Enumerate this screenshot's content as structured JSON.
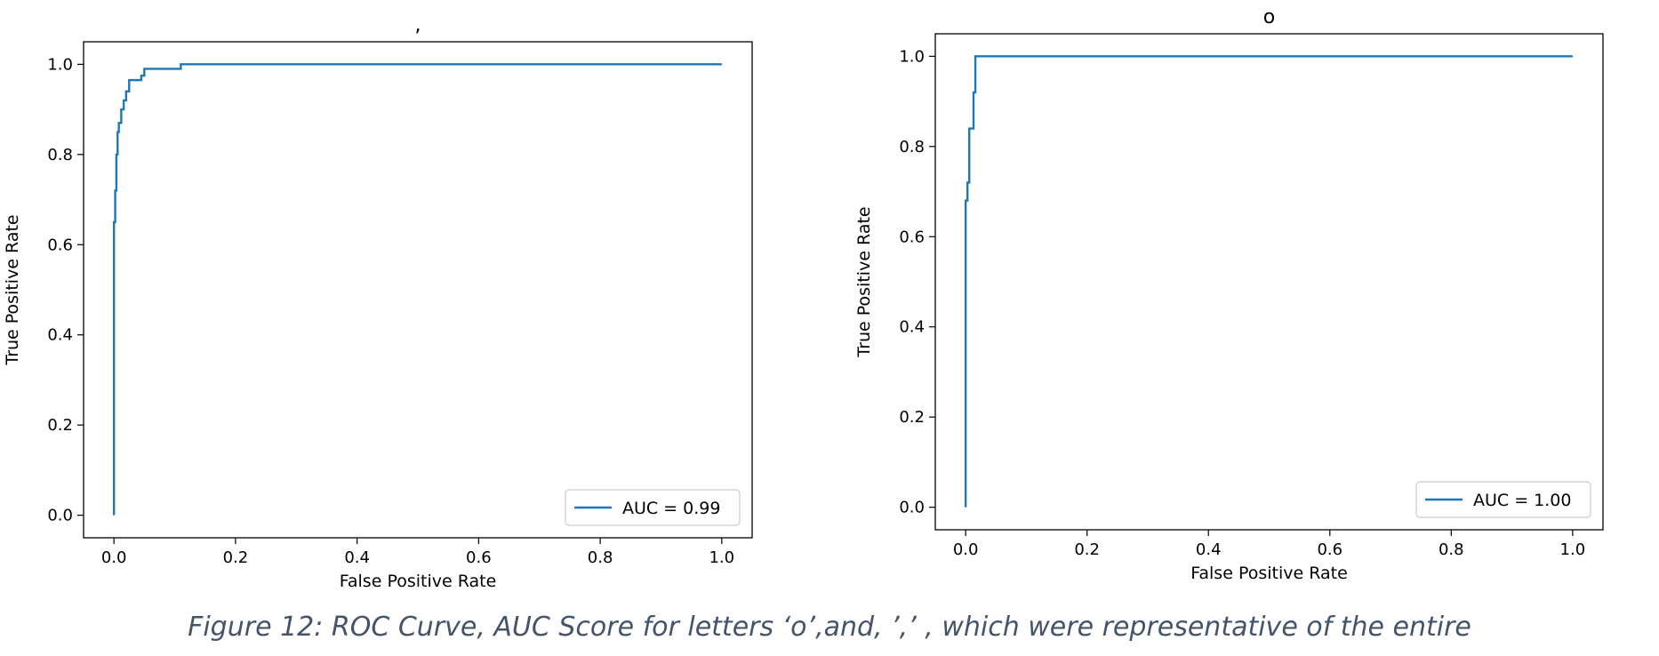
{
  "chart_data": [
    {
      "type": "line",
      "title": ",",
      "xlabel": "False Positive Rate",
      "ylabel": "True Positive Rate",
      "xlim": [
        -0.05,
        1.05
      ],
      "ylim": [
        -0.05,
        1.05
      ],
      "xticks": [
        "0.0",
        "0.2",
        "0.4",
        "0.6",
        "0.8",
        "1.0"
      ],
      "yticks": [
        "0.0",
        "0.2",
        "0.4",
        "0.6",
        "0.8",
        "1.0"
      ],
      "legend": "lower-right",
      "color": "#1f77b4",
      "series": [
        {
          "name": "AUC = 0.99",
          "x": [
            0.0,
            0.0,
            0.002,
            0.002,
            0.004,
            0.004,
            0.006,
            0.006,
            0.008,
            0.008,
            0.012,
            0.012,
            0.016,
            0.016,
            0.02,
            0.02,
            0.025,
            0.025,
            0.03,
            0.03,
            0.045,
            0.045,
            0.05,
            0.05,
            0.055,
            0.055,
            0.11,
            0.11,
            1.0
          ],
          "y": [
            0.0,
            0.65,
            0.65,
            0.72,
            0.72,
            0.8,
            0.8,
            0.85,
            0.85,
            0.87,
            0.87,
            0.9,
            0.9,
            0.92,
            0.92,
            0.94,
            0.94,
            0.965,
            0.965,
            0.965,
            0.965,
            0.975,
            0.975,
            0.99,
            0.99,
            0.99,
            0.99,
            1.0,
            1.0
          ]
        }
      ]
    },
    {
      "type": "line",
      "title": "o",
      "xlabel": "False Positive Rate",
      "ylabel": "True Positive Rate",
      "xlim": [
        -0.05,
        1.05
      ],
      "ylim": [
        -0.05,
        1.05
      ],
      "xticks": [
        "0.0",
        "0.2",
        "0.4",
        "0.6",
        "0.8",
        "1.0"
      ],
      "yticks": [
        "0.0",
        "0.2",
        "0.4",
        "0.6",
        "0.8",
        "1.0"
      ],
      "legend": "lower-right",
      "color": "#1f77b4",
      "series": [
        {
          "name": "AUC = 1.00",
          "x": [
            0.0,
            0.0,
            0.003,
            0.003,
            0.006,
            0.006,
            0.013,
            0.013,
            0.016,
            0.016,
            1.0
          ],
          "y": [
            0.0,
            0.68,
            0.68,
            0.72,
            0.72,
            0.84,
            0.84,
            0.92,
            0.92,
            1.0,
            1.0
          ]
        }
      ]
    }
  ],
  "caption": "Figure 12: ROC Curve, AUC Score for letters ‘o’,and, ’,’ , which were representative of the entire"
}
